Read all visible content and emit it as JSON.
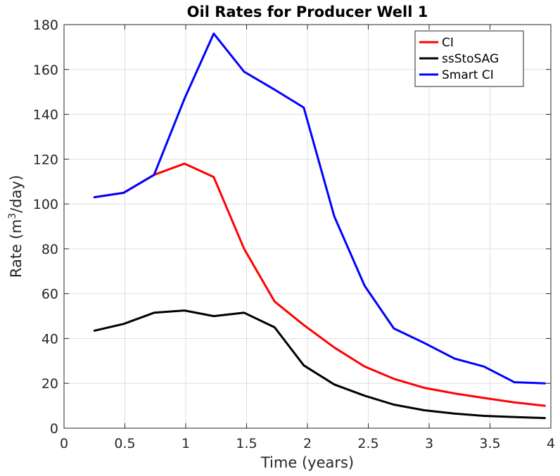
{
  "chart_data": {
    "type": "line",
    "title": "Oil Rates for Producer Well 1",
    "xlabel": "Time (years)",
    "ylabel_prefix": "Rate (m",
    "ylabel_sup": "3",
    "ylabel_suffix": "/day)",
    "xlim": [
      0,
      4
    ],
    "ylim": [
      0,
      180
    ],
    "xticks": [
      0,
      0.5,
      1,
      1.5,
      2,
      2.5,
      3,
      3.5,
      4
    ],
    "xtick_labels": [
      "0",
      "0.5",
      "1",
      "1.5",
      "2",
      "2.5",
      "3",
      "3.5",
      "4"
    ],
    "yticks": [
      0,
      20,
      40,
      60,
      80,
      100,
      120,
      140,
      160,
      180
    ],
    "ytick_labels": [
      "0",
      "20",
      "40",
      "60",
      "80",
      "100",
      "120",
      "140",
      "160",
      "180"
    ],
    "grid": true,
    "legend_position": "top-right",
    "x": [
      0.25,
      0.49,
      0.74,
      0.99,
      1.23,
      1.48,
      1.73,
      1.97,
      2.22,
      2.47,
      2.71,
      2.96,
      3.21,
      3.45,
      3.7,
      3.95
    ],
    "series": [
      {
        "name": "CI",
        "color": "#ff0000",
        "values": [
          103,
          105,
          113,
          118,
          112,
          80,
          56.5,
          46,
          36,
          27.5,
          22,
          18,
          15.5,
          13.5,
          11.5,
          10
        ]
      },
      {
        "name": "ssStoSAG",
        "color": "#000000",
        "values": [
          43.5,
          46.5,
          51.5,
          52.5,
          50,
          51.5,
          45,
          28,
          19.5,
          14.5,
          10.5,
          8,
          6.5,
          5.5,
          5,
          4.5
        ]
      },
      {
        "name": "Smart CI",
        "color": "#0000ff",
        "values": [
          103,
          105,
          113,
          147,
          176,
          159,
          151,
          143,
          94.5,
          63.5,
          44.5,
          38,
          31,
          27.5,
          20.5,
          20
        ]
      }
    ]
  }
}
